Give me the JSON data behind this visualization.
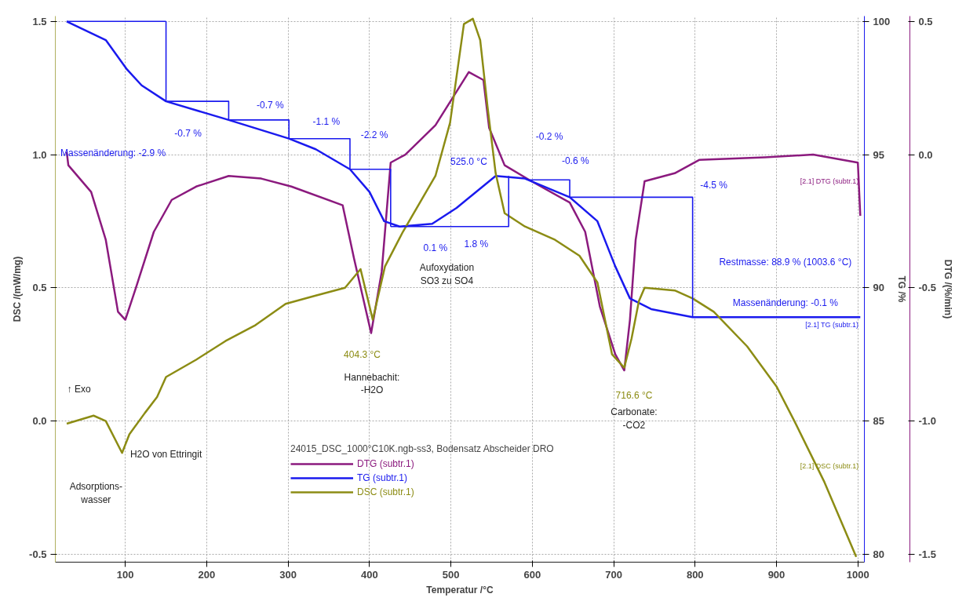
{
  "chart_data": {
    "type": "line",
    "xlabel": "Temperatur /°C",
    "ylabel": "DSC /(mW/mg)",
    "y2label": "TG /%",
    "y3label": "DTG /(%/min)",
    "legend_title": "24015_DSC_1000°C10K.ngb-ss3, Bodensatz Abscheider DRO",
    "xlim": [
      14,
      1008
    ],
    "xticks": [
      100,
      200,
      300,
      400,
      500,
      600,
      700,
      800,
      900,
      1000
    ],
    "ylim": [
      -0.53,
      1.52
    ],
    "yticks": [
      {
        "value": -0.5,
        "label": "-0.5"
      },
      {
        "value": 0,
        "label": "0.0"
      },
      {
        "value": 0.5,
        "label": "0.5"
      },
      {
        "value": 1,
        "label": "1.0"
      },
      {
        "value": 1.5,
        "label": "1.5"
      }
    ],
    "y2lim": [
      79.7,
      100.2
    ],
    "y2ticks": [
      80,
      85,
      90,
      95,
      100
    ],
    "y3lim": [
      -1.53,
      0.52
    ],
    "y3ticks": [
      {
        "value": -1.5,
        "label": "-1.5"
      },
      {
        "value": -1,
        "label": "-1.0"
      },
      {
        "value": -0.5,
        "label": "-0.5"
      },
      {
        "value": 0,
        "label": "0.0"
      },
      {
        "value": 0.5,
        "label": "0.5"
      }
    ],
    "grid": true,
    "legend": "bottom",
    "marker": "none",
    "line_style": "solid",
    "series": [
      {
        "name": "DTG (subtr.1)",
        "color": "#8b1a7e",
        "axis": "y3",
        "x": [
          28,
          30,
          58,
          76,
          91,
          100,
          113,
          135,
          157,
          187,
          227,
          267,
          304,
          367,
          381,
          402,
          415,
          426,
          444,
          481,
          522,
          540,
          547,
          566,
          599,
          646,
          665,
          683,
          702,
          713,
          720,
          727,
          738,
          775,
          805,
          886,
          945,
          1000,
          1003
        ],
        "values": [
          0.01,
          -0.04,
          -0.14,
          -0.32,
          -0.59,
          -0.62,
          -0.5,
          -0.29,
          -0.17,
          -0.12,
          -0.08,
          -0.09,
          -0.12,
          -0.19,
          -0.39,
          -0.67,
          -0.44,
          -0.03,
          0.0,
          0.11,
          0.31,
          0.28,
          0.1,
          -0.04,
          -0.1,
          -0.18,
          -0.29,
          -0.57,
          -0.75,
          -0.81,
          -0.62,
          -0.32,
          -0.1,
          -0.07,
          -0.02,
          -0.01,
          0.0,
          -0.03,
          -0.23
        ]
      },
      {
        "name": "TG (subtr.1)",
        "color": "#1a1aee",
        "axis": "y2",
        "x": [
          28,
          76,
          102,
          120,
          150,
          227,
          301,
          334,
          376,
          400,
          418,
          437,
          477,
          507,
          527,
          555,
          591,
          646,
          680,
          702,
          720,
          746,
          797,
          1003
        ],
        "values": [
          100,
          99.3,
          98.2,
          97.6,
          97.0,
          96.3,
          95.6,
          95.2,
          94.45,
          93.6,
          92.5,
          92.3,
          92.4,
          93.0,
          93.5,
          94.2,
          94.1,
          93.4,
          92.5,
          90.8,
          89.6,
          89.2,
          88.9,
          88.9
        ]
      },
      {
        "name": "DSC (subtr.1)",
        "color": "#8c8c14",
        "x": [
          28,
          61,
          76,
          96,
          105,
          124,
          139,
          150,
          187,
          223,
          260,
          297,
          333,
          370,
          389,
          404,
          419,
          441,
          481,
          499,
          516,
          527,
          536,
          545,
          555,
          566,
          591,
          628,
          658,
          680,
          698,
          713,
          722,
          731,
          738,
          775,
          797,
          823,
          864,
          900,
          922,
          959,
          998
        ],
        "values": [
          -0.01,
          0.02,
          0.0,
          -0.12,
          -0.05,
          0.03,
          0.09,
          0.165,
          0.23,
          0.3,
          0.36,
          0.44,
          0.47,
          0.5,
          0.57,
          0.38,
          0.58,
          0.71,
          0.92,
          1.12,
          1.49,
          1.51,
          1.43,
          1.18,
          0.93,
          0.78,
          0.73,
          0.68,
          0.62,
          0.52,
          0.25,
          0.2,
          0.31,
          0.45,
          0.5,
          0.49,
          0.46,
          0.41,
          0.28,
          0.13,
          0.0,
          -0.23,
          -0.51
        ]
      },
      {
        "color": "#1a1aee",
        "axis": "y2",
        "x": [
          28,
          150,
          null,
          150,
          150,
          227,
          227,
          null,
          227,
          301,
          301,
          null,
          301,
          376,
          376,
          null,
          376,
          426,
          426,
          null,
          426,
          571,
          571,
          null,
          597,
          646,
          646,
          null,
          646,
          797,
          797
        ],
        "values": [
          100,
          100,
          null,
          100,
          97.0,
          97.0,
          96.3,
          null,
          96.3,
          96.3,
          95.6,
          null,
          95.6,
          95.6,
          94.45,
          null,
          94.45,
          94.45,
          92.3,
          null,
          92.3,
          92.3,
          94.2,
          null,
          94.05,
          94.05,
          93.4,
          null,
          93.4,
          93.4,
          88.9
        ]
      }
    ],
    "annotations": [
      "Massenänderung: -2.9 %",
      "-0.7 %",
      "-0.7 %",
      "-1.1 %",
      "-2.2 %",
      "525.0 °C",
      "-0.2 %",
      "-0.6 %",
      "0.1 %",
      "1.8 %",
      "-4.5 %",
      "Restmasse: 88.9 % (1003.6 °C)",
      "Massenänderung: -0.1 %",
      "Aufoxydation\nSO3 zu SO4",
      "404.3 °C",
      "Hannebachit:\n-H2O",
      "716.6 °C",
      "Carbonate:\n-CO2",
      "↑ Exo",
      "H2O von Ettringit",
      "Adsorptions-\nwasser",
      "[2.1] DTG (subtr.1)",
      "[2.1] TG (subtr.1)",
      "[2.1] DSC (subtr.1)"
    ]
  }
}
